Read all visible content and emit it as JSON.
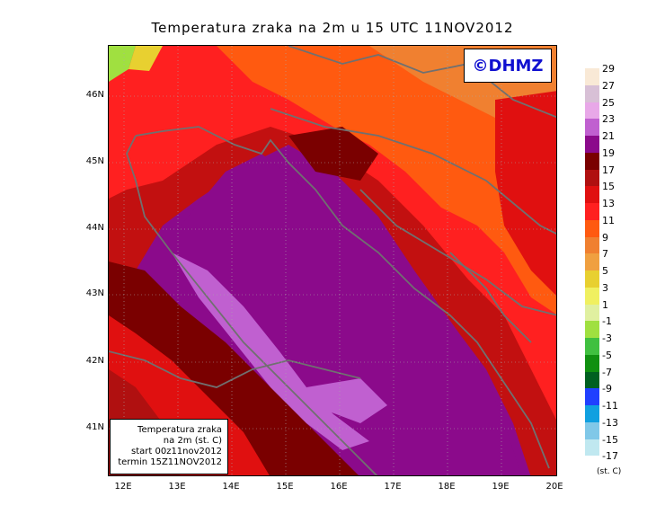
{
  "title": "Temperatura zraka na 2m u 15 UTC 11NOV2012",
  "logo": "©DHMZ",
  "info": {
    "line1": "Temperatura zraka",
    "line2": "na 2m (st. C)",
    "line3": "start 00z11nov2012",
    "line4": "termin 15Z11NOV2012"
  },
  "axes": {
    "y_labels": [
      "46N",
      "45N",
      "44N",
      "43N",
      "42N",
      "41N"
    ],
    "x_labels": [
      "12E",
      "13E",
      "14E",
      "15E",
      "16E",
      "17E",
      "18E",
      "19E",
      "20E"
    ]
  },
  "legend": {
    "unit": "(st. C)",
    "labels": [
      "29",
      "27",
      "25",
      "23",
      "21",
      "19",
      "17",
      "15",
      "13",
      "11",
      "9",
      "7",
      "5",
      "3",
      "1",
      "-1",
      "-3",
      "-5",
      "-7",
      "-9",
      "-11",
      "-13",
      "-15",
      "-17"
    ],
    "colors": [
      "#f9e9d6",
      "#d8c0d6",
      "#e8a8e8",
      "#c060d0",
      "#8b0a8b",
      "#7a0000",
      "#b01010",
      "#e01010",
      "#ff2020",
      "#ff5a10",
      "#f08030",
      "#f0a040",
      "#e8d030",
      "#f0f060",
      "#e0f0a0",
      "#a0e040",
      "#40c040",
      "#109010",
      "#006020",
      "#2040ff",
      "#10a0e0",
      "#80c8e8",
      "#c0e8f0",
      "#e8fcfc"
    ]
  }
}
